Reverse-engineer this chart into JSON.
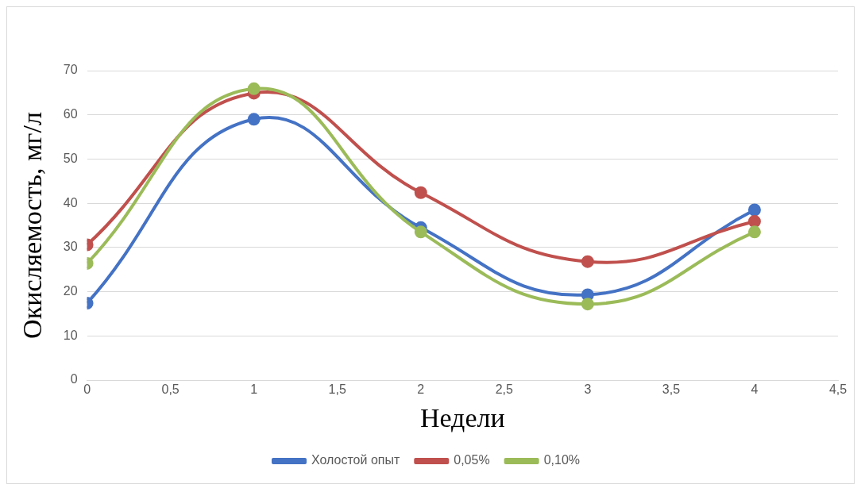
{
  "chart_data": {
    "type": "line",
    "xlabel": "Недели",
    "ylabel": "Окисляемость, мг/л",
    "x": [
      0,
      1,
      2,
      3,
      4
    ],
    "series": [
      {
        "name": "Холостой опыт",
        "color": "#4472c4",
        "values": [
          17.4,
          59,
          34.5,
          19.3,
          38.5
        ]
      },
      {
        "name": "0,05%",
        "color": "#c0504d",
        "values": [
          30.6,
          64.9,
          42.4,
          26.8,
          35.9
        ]
      },
      {
        "name": "0,10%",
        "color": "#9bbb59",
        "values": [
          26.4,
          65.9,
          33.5,
          17.2,
          33.5
        ]
      }
    ],
    "xlim": [
      0,
      4.5
    ],
    "xticks": [
      0,
      {
        "value": 0.5,
        "label": "0,5"
      },
      1,
      {
        "value": 1.5,
        "label": "1,5"
      },
      2,
      {
        "value": 2.5,
        "label": "2,5"
      },
      3,
      {
        "value": 3.5,
        "label": "3,5"
      },
      4,
      {
        "value": 4.5,
        "label": "4,5"
      }
    ],
    "ylim": [
      0,
      70
    ],
    "yticks": [
      0,
      10,
      20,
      30,
      40,
      50,
      60,
      70
    ],
    "grid": "y",
    "legend": "bottom",
    "marker": "circle",
    "line_style": "solid"
  }
}
